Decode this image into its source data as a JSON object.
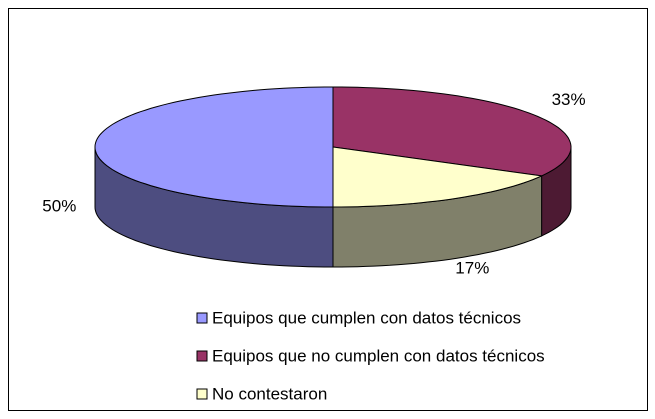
{
  "chart_data": {
    "type": "pie",
    "categories": [
      "Equipos que cumplen con datos técnicos",
      "Equipos que no cumplen con datos técnicos",
      "No contestaron"
    ],
    "values": [
      50,
      33,
      17
    ],
    "value_labels": [
      "50%",
      "33%",
      "17%"
    ],
    "colors": [
      "#9999ff",
      "#993366",
      "#ffffcc"
    ],
    "side_colors": [
      "#4d4d80",
      "#4d1a33",
      "#80806a"
    ],
    "legend": "bottom"
  }
}
